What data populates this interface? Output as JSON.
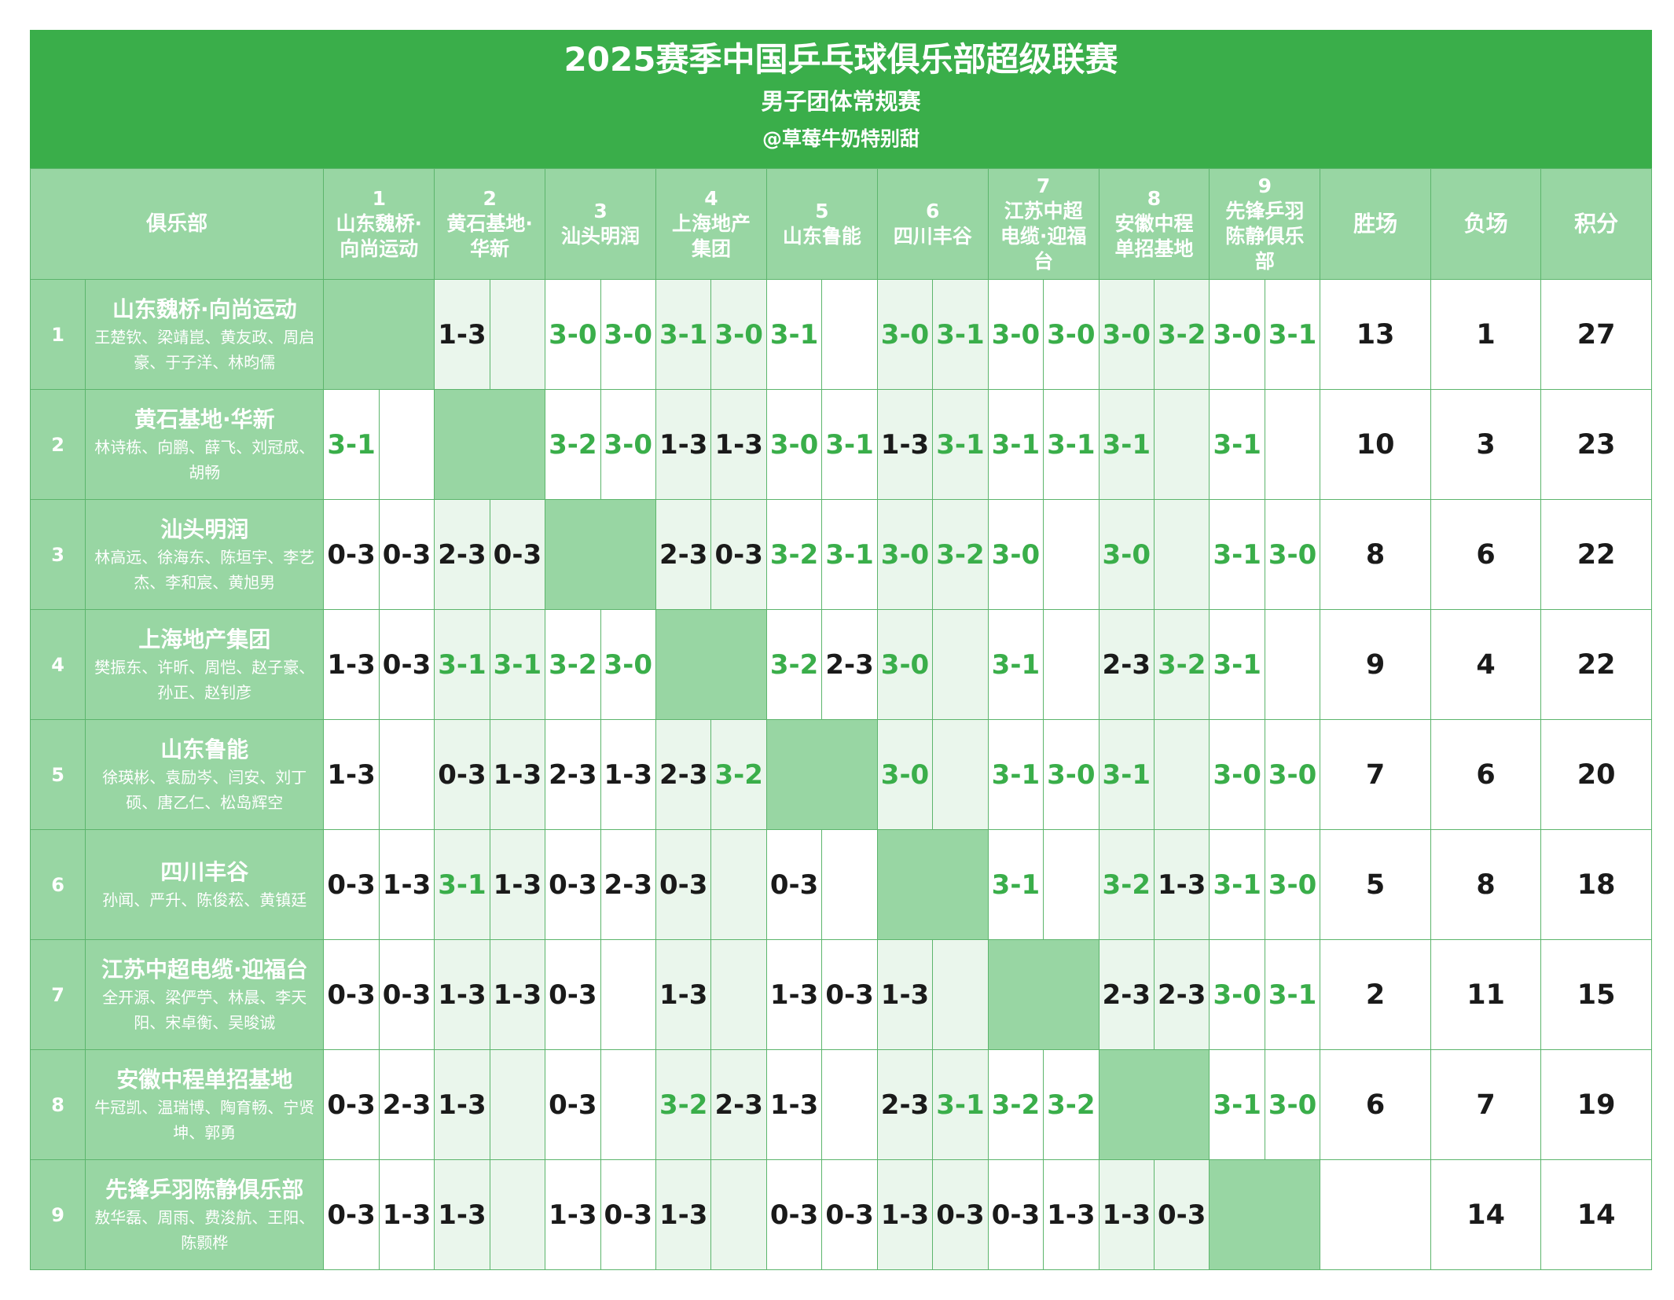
{
  "title": "2025赛季中国乒乓球俱乐部超级联赛",
  "subtitle": "男子团体常规赛",
  "author": "@草莓牛奶特别甜",
  "headers": {
    "club": "俱乐部",
    "wins": "胜场",
    "losses": "负场",
    "points": "积分",
    "opponents": [
      {
        "num": "1",
        "name": "山东魏桥·向尚运动"
      },
      {
        "num": "2",
        "name": "黄石基地·华新"
      },
      {
        "num": "3",
        "name": "汕头明润"
      },
      {
        "num": "4",
        "name": "上海地产集团"
      },
      {
        "num": "5",
        "name": "山东鲁能"
      },
      {
        "num": "6",
        "name": "四川丰谷"
      },
      {
        "num": "7",
        "name": "江苏中超电缆·迎福台"
      },
      {
        "num": "8",
        "name": "安徽中程单招基地"
      },
      {
        "num": "9",
        "name": "先锋乒羽陈静俱乐部"
      }
    ]
  },
  "rows": [
    {
      "num": "1",
      "name": "山东魏桥·向尚运动",
      "players": "王楚钦、梁靖崑、黄友政、周启豪、于子洋、林昀儒",
      "results": [
        [
          "",
          ""
        ],
        [
          "1-3",
          ""
        ],
        [
          "3-0",
          "3-0"
        ],
        [
          "3-1",
          "3-0"
        ],
        [
          "3-1",
          ""
        ],
        [
          "3-0",
          "3-1"
        ],
        [
          "3-0",
          "3-0"
        ],
        [
          "3-0",
          "3-2"
        ],
        [
          "3-0",
          "3-1"
        ]
      ],
      "wins": "13",
      "losses": "1",
      "points": "27"
    },
    {
      "num": "2",
      "name": "黄石基地·华新",
      "players": "林诗栋、向鹏、薛飞、刘冠成、胡畅",
      "results": [
        [
          "3-1",
          ""
        ],
        [
          "",
          ""
        ],
        [
          "3-2",
          "3-0"
        ],
        [
          "1-3",
          "1-3"
        ],
        [
          "3-0",
          "3-1"
        ],
        [
          "1-3",
          "3-1"
        ],
        [
          "3-1",
          "3-1"
        ],
        [
          "3-1",
          ""
        ],
        [
          "3-1",
          ""
        ]
      ],
      "wins": "10",
      "losses": "3",
      "points": "23"
    },
    {
      "num": "3",
      "name": "汕头明润",
      "players": "林高远、徐海东、陈垣宇、李艺杰、李和宸、黄旭男",
      "results": [
        [
          "0-3",
          "0-3"
        ],
        [
          "2-3",
          "0-3"
        ],
        [
          "",
          ""
        ],
        [
          "2-3",
          "0-3"
        ],
        [
          "3-2",
          "3-1"
        ],
        [
          "3-0",
          "3-2"
        ],
        [
          "3-0",
          ""
        ],
        [
          "3-0",
          ""
        ],
        [
          "3-1",
          "3-0"
        ]
      ],
      "wins": "8",
      "losses": "6",
      "points": "22"
    },
    {
      "num": "4",
      "name": "上海地产集团",
      "players": "樊振东、许昕、周恺、赵子豪、孙正、赵钊彦",
      "results": [
        [
          "1-3",
          "0-3"
        ],
        [
          "3-1",
          "3-1"
        ],
        [
          "3-2",
          "3-0"
        ],
        [
          "",
          ""
        ],
        [
          "3-2",
          "2-3"
        ],
        [
          "3-0",
          ""
        ],
        [
          "3-1",
          ""
        ],
        [
          "2-3",
          "3-2"
        ],
        [
          "3-1",
          ""
        ]
      ],
      "wins": "9",
      "losses": "4",
      "points": "22"
    },
    {
      "num": "5",
      "name": "山东鲁能",
      "players": "徐瑛彬、袁励岑、闫安、刘丁硕、唐乙仁、松岛辉空",
      "results": [
        [
          "1-3",
          ""
        ],
        [
          "0-3",
          "1-3"
        ],
        [
          "2-3",
          "1-3"
        ],
        [
          "2-3",
          "3-2"
        ],
        [
          "",
          ""
        ],
        [
          "3-0",
          ""
        ],
        [
          "3-1",
          "3-0"
        ],
        [
          "3-1",
          ""
        ],
        [
          "3-0",
          "3-0"
        ]
      ],
      "wins": "7",
      "losses": "6",
      "points": "20"
    },
    {
      "num": "6",
      "name": "四川丰谷",
      "players": "孙闻、严升、陈俊菘、黄镇廷",
      "results": [
        [
          "0-3",
          "1-3"
        ],
        [
          "3-1",
          "1-3"
        ],
        [
          "0-3",
          "2-3"
        ],
        [
          "0-3",
          ""
        ],
        [
          "0-3",
          ""
        ],
        [
          "",
          ""
        ],
        [
          "3-1",
          ""
        ],
        [
          "3-2",
          "1-3"
        ],
        [
          "3-1",
          "3-0"
        ]
      ],
      "wins": "5",
      "losses": "8",
      "points": "18"
    },
    {
      "num": "7",
      "name": "江苏中超电缆·迎福台",
      "players": "全开源、梁俨苧、林晨、李天阳、宋卓衡、吴晙诚",
      "results": [
        [
          "0-3",
          "0-3"
        ],
        [
          "1-3",
          "1-3"
        ],
        [
          "0-3",
          ""
        ],
        [
          "1-3",
          ""
        ],
        [
          "1-3",
          "0-3"
        ],
        [
          "1-3",
          ""
        ],
        [
          "",
          ""
        ],
        [
          "2-3",
          "2-3"
        ],
        [
          "3-0",
          "3-1"
        ]
      ],
      "wins": "2",
      "losses": "11",
      "points": "15"
    },
    {
      "num": "8",
      "name": "安徽中程单招基地",
      "players": "牛冠凯、温瑞博、陶育畅、宁贤坤、郭勇",
      "results": [
        [
          "0-3",
          "2-3"
        ],
        [
          "1-3",
          ""
        ],
        [
          "0-3",
          ""
        ],
        [
          "3-2",
          "2-3"
        ],
        [
          "1-3",
          ""
        ],
        [
          "2-3",
          "3-1"
        ],
        [
          "3-2",
          "3-2"
        ],
        [
          "",
          ""
        ],
        [
          "3-1",
          "3-0"
        ]
      ],
      "wins": "6",
      "losses": "7",
      "points": "19"
    },
    {
      "num": "9",
      "name": "先锋乒羽陈静俱乐部",
      "players": "敖华磊、周雨、费浚航、王阳、陈颢桦",
      "results": [
        [
          "0-3",
          "1-3"
        ],
        [
          "1-3",
          ""
        ],
        [
          "1-3",
          "0-3"
        ],
        [
          "1-3",
          ""
        ],
        [
          "0-3",
          "0-3"
        ],
        [
          "1-3",
          "0-3"
        ],
        [
          "0-3",
          "1-3"
        ],
        [
          "1-3",
          "0-3"
        ],
        [
          "",
          ""
        ]
      ],
      "wins": "",
      "losses": "14",
      "points": "14"
    }
  ],
  "colors": {
    "win": "#3aae4a",
    "loss": "#1a1a1a",
    "header_green": "#3aae4a",
    "cell_green": "#98d6a3",
    "light_green": "#eaf6ec"
  }
}
